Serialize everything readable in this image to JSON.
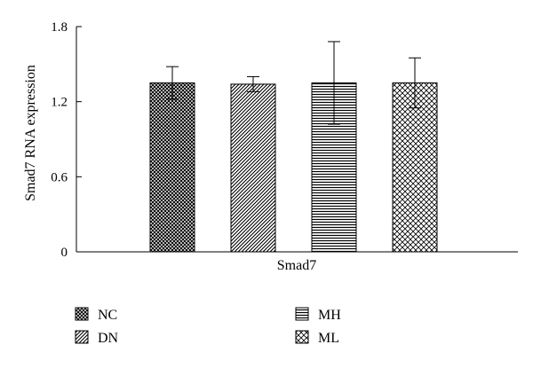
{
  "chart_data": {
    "type": "bar",
    "title": "",
    "xlabel": "Smad7",
    "ylabel": "Smad7 RNA expression",
    "ylim": [
      0,
      1.8
    ],
    "yticks": [
      "0",
      "0.6",
      "1.2",
      "1.8"
    ],
    "grid": false,
    "legend_position": "bottom",
    "categories": [
      "Smad7"
    ],
    "series": [
      {
        "name": "NC",
        "values": [
          1.35
        ],
        "error": [
          0.13
        ],
        "pattern": "crosshatch-dense"
      },
      {
        "name": "DN",
        "values": [
          1.34
        ],
        "error": [
          0.06
        ],
        "pattern": "diagonal"
      },
      {
        "name": "MH",
        "values": [
          1.35
        ],
        "error": [
          0.33
        ],
        "pattern": "horizontal"
      },
      {
        "name": "ML",
        "values": [
          1.35
        ],
        "error": [
          0.2
        ],
        "pattern": "crosshatch-sparse"
      }
    ]
  }
}
